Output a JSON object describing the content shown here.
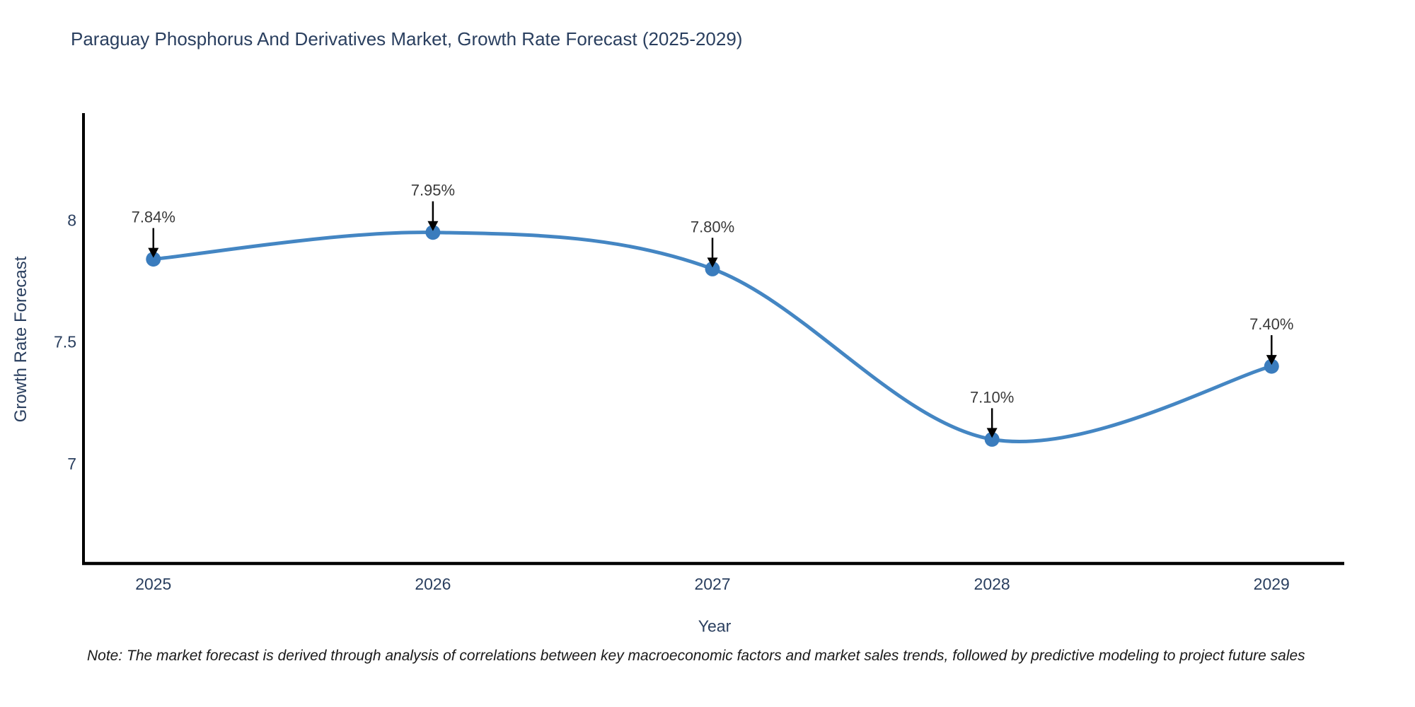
{
  "note": "Note: The market forecast is derived through analysis of correlations between key macroeconomic factors and market sales trends, followed by predictive modeling to project future sales",
  "chart_data": {
    "type": "line",
    "title": "Paraguay Phosphorus And Derivatives Market, Growth Rate Forecast (2025-2029)",
    "xlabel": "Year",
    "ylabel": "Growth Rate Forecast",
    "x": [
      2025,
      2026,
      2027,
      2028,
      2029
    ],
    "values": [
      7.84,
      7.95,
      7.8,
      7.1,
      7.4
    ],
    "point_labels": [
      "7.84%",
      "7.95%",
      "7.80%",
      "7.10%",
      "7.40%"
    ],
    "series_name": "Growth Rate Forecast",
    "line_shape": "spline",
    "grid": false,
    "legend": "none",
    "xticks": [
      {
        "value": 2025,
        "label": "2025"
      },
      {
        "value": 2026,
        "label": "2026"
      },
      {
        "value": 2027,
        "label": "2027"
      },
      {
        "value": 2028,
        "label": "2028"
      },
      {
        "value": 2029,
        "label": "2029"
      }
    ],
    "yticks": [
      {
        "value": 7,
        "label": "7"
      },
      {
        "value": 7.5,
        "label": "7.5"
      },
      {
        "value": 8,
        "label": "8"
      }
    ],
    "xlim": [
      2024.75,
      2029.26
    ],
    "ylim": [
      6.59,
      8.44
    ],
    "colors": {
      "line": "#4486c3",
      "marker": "#3a7cbd",
      "axis": "#000000",
      "tick_label": "#2a3f5f",
      "title": "#2a3f5f",
      "annotation_text": "#3a3a3a",
      "arrow": "#000000",
      "background": "#ffffff"
    }
  }
}
